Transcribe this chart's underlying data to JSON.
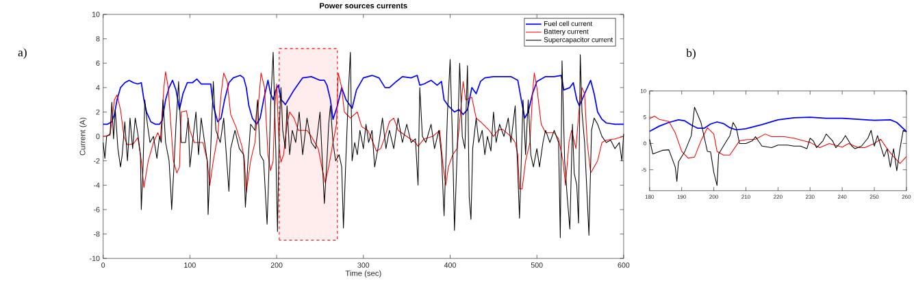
{
  "chart_data": [
    {
      "type": "line",
      "title": "Power sources currents",
      "xlabel": "Time (sec)",
      "ylabel": "Current (A)",
      "xlim": [
        0,
        600
      ],
      "ylim": [
        -10,
        10
      ],
      "xticks": [
        0,
        100,
        200,
        300,
        400,
        500,
        600
      ],
      "yticks": [
        -10,
        -8,
        -6,
        -4,
        -2,
        0,
        2,
        4,
        6,
        8,
        10
      ],
      "legend": "top right",
      "bands": [
        {
          "axis": "x",
          "from": 203,
          "to": 270,
          "color": "#ff0000"
        }
      ],
      "annotations": [
        "a)"
      ],
      "series": [
        {
          "name": "Fuel cell current",
          "color": "#0000ff",
          "x": [
            0,
            5,
            10,
            13,
            16,
            20,
            25,
            30,
            35,
            40,
            44,
            47,
            50,
            55,
            60,
            65,
            68,
            72,
            76,
            80,
            84,
            88,
            92,
            97,
            103,
            108,
            113,
            120,
            124,
            127,
            132,
            136,
            140,
            145,
            150,
            158,
            162,
            165,
            168,
            172,
            177,
            181,
            185,
            190,
            193,
            196,
            199,
            202,
            205,
            208,
            210,
            220,
            230,
            240,
            250,
            255,
            258,
            262,
            265,
            270,
            275,
            280,
            287,
            292,
            300,
            310,
            318,
            325,
            330,
            338,
            345,
            355,
            362,
            365,
            370,
            378,
            385,
            390,
            393,
            398,
            405,
            410,
            415,
            420,
            425,
            430,
            435,
            440,
            450,
            460,
            470,
            478,
            482,
            486,
            490,
            495,
            500,
            510,
            520,
            528,
            531,
            538,
            542,
            546,
            549,
            555,
            562,
            566,
            570,
            575,
            580,
            590,
            600
          ],
          "values": [
            1.0,
            1.0,
            1.2,
            1.8,
            3,
            4,
            4.4,
            4.6,
            4.4,
            4.3,
            4.4,
            3,
            2,
            1.2,
            1.0,
            1.0,
            1.3,
            3,
            4,
            4.6,
            3.8,
            2.2,
            3.5,
            4.4,
            4.4,
            4.7,
            4.3,
            4.3,
            4.3,
            2.5,
            1.2,
            1.5,
            3,
            4.4,
            4.8,
            5.0,
            4.8,
            4,
            2.5,
            1.5,
            1.0,
            1.5,
            3,
            4.6,
            3.5,
            3.0,
            3.8,
            4.2,
            3.0,
            2.8,
            2.6,
            3.8,
            4.8,
            4.9,
            4.6,
            4.6,
            4.2,
            3,
            1.4,
            2.5,
            4,
            3.0,
            2.3,
            3.8,
            4.8,
            5.0,
            4.8,
            4.0,
            4.0,
            4.5,
            4.9,
            4.8,
            5.0,
            4.2,
            4.3,
            4.6,
            4.2,
            4.5,
            3.0,
            2.5,
            2.0,
            2.2,
            1.8,
            2.2,
            4.0,
            3.5,
            4.5,
            4.8,
            4.9,
            4.9,
            4.9,
            4.6,
            3.0,
            1.5,
            2.0,
            3.5,
            4.5,
            4.9,
            4.9,
            5.0,
            3.8,
            4.0,
            4.4,
            3.0,
            2.5,
            3.5,
            4.6,
            3.5,
            2.0,
            1.4,
            1.1,
            1.0,
            1.0
          ]
        },
        {
          "name": "Battery current",
          "color": "#ff0000",
          "x": [
            0,
            8,
            13,
            16,
            20,
            24,
            28,
            35,
            40,
            44,
            47,
            52,
            58,
            63,
            66,
            70,
            72,
            75,
            78,
            81,
            85,
            88,
            90,
            96,
            100,
            105,
            115,
            120,
            123,
            127,
            132,
            136,
            139,
            143,
            147,
            153,
            160,
            163,
            165,
            170,
            175,
            180,
            182,
            186,
            190,
            193,
            196,
            198,
            200,
            203,
            205,
            208,
            212,
            215,
            220,
            225,
            235,
            240,
            248,
            252,
            256,
            260,
            265,
            269,
            271,
            275,
            278,
            285,
            293,
            298,
            305,
            310,
            315,
            320,
            325,
            330,
            335,
            340,
            350,
            360,
            363,
            370,
            380,
            388,
            392,
            395,
            398,
            403,
            408,
            412,
            415,
            418,
            425,
            430,
            435,
            445,
            450,
            455,
            460,
            470,
            475,
            478,
            480,
            483,
            487,
            492,
            495,
            497,
            500,
            505,
            510,
            520,
            525,
            530,
            533,
            537,
            540,
            545,
            549,
            552,
            555,
            558,
            562,
            570,
            575,
            580,
            590,
            600
          ],
          "values": [
            0,
            0.1,
            3.0,
            3.4,
            2.2,
            0.0,
            -0.7,
            -0.6,
            -0.1,
            -2.0,
            -4.2,
            -2,
            -0.5,
            0.3,
            -0.2,
            4,
            5.3,
            4.0,
            1.0,
            -2,
            -3.0,
            -2.5,
            2.0,
            2.1,
            0.5,
            -0.5,
            -0.5,
            -2,
            -4.0,
            -2.0,
            0.0,
            3.5,
            5.2,
            4.5,
            1.8,
            0.8,
            -0.8,
            -2.0,
            -4.6,
            -2.0,
            -0.5,
            3.5,
            5.2,
            4.0,
            -1.5,
            -2.8,
            -2.0,
            2.5,
            4.3,
            -1.0,
            -2.1,
            -1.5,
            1.0,
            2.0,
            1.5,
            0.5,
            0.5,
            0.0,
            -1.0,
            -2.5,
            -3.8,
            -2.5,
            -0.5,
            1.0,
            5.2,
            4.0,
            2.0,
            1.5,
            2.0,
            0.8,
            0.5,
            -0.3,
            -1.2,
            -1.0,
            0.0,
            1.2,
            1.5,
            0.5,
            0.0,
            -0.5,
            -0.8,
            -0.2,
            0.0,
            0.5,
            -2.5,
            -4.0,
            -2.5,
            -1.5,
            -1.0,
            2.0,
            4.5,
            3.0,
            3.2,
            1.5,
            1.2,
            0.5,
            0.0,
            0.5,
            0.6,
            0.0,
            -0.5,
            -1.5,
            -4.3,
            -4.3,
            -2.0,
            -0.5,
            3.5,
            5.2,
            4.0,
            1.0,
            0.3,
            0.3,
            -0.2,
            -2,
            -4,
            -0.5,
            0.5,
            -1.0,
            2.5,
            4.0,
            3.5,
            -0.5,
            -3.0,
            -2,
            -0.5,
            -0.3,
            -0.2,
            0.0
          ]
        },
        {
          "name": "Supercapacitor current",
          "color": "#000000",
          "x": [
            0,
            2,
            4,
            8,
            10,
            12,
            14,
            17,
            20,
            22,
            25,
            28,
            31,
            34,
            37,
            40,
            43,
            44,
            46,
            48,
            51,
            54,
            58,
            62,
            65,
            67,
            69,
            72,
            76,
            78,
            79,
            82,
            84,
            87,
            90,
            95,
            98,
            100,
            103,
            107,
            110,
            113,
            117,
            120,
            121,
            124,
            127,
            130,
            135,
            139,
            142,
            145,
            147,
            152,
            157,
            162,
            164,
            167,
            170,
            175,
            178,
            181,
            185,
            189,
            191,
            193,
            196,
            199,
            201,
            203,
            205,
            207,
            210,
            212,
            215,
            218,
            222,
            226,
            230,
            235,
            240,
            245,
            250,
            253,
            255,
            258,
            260,
            262,
            265,
            268,
            272,
            275,
            277,
            280,
            283,
            285,
            287,
            290,
            293,
            296,
            300,
            303,
            306,
            310,
            313,
            318,
            322,
            326,
            330,
            335,
            340,
            345,
            350,
            355,
            360,
            363,
            365,
            368,
            372,
            378,
            382,
            387,
            390,
            393,
            397,
            400,
            403,
            405,
            408,
            411,
            414,
            417,
            420,
            422,
            424,
            426,
            430,
            433,
            437,
            440,
            443,
            447,
            450,
            453,
            457,
            462,
            467,
            470,
            475,
            478,
            480,
            482,
            484,
            487,
            490,
            493,
            496,
            500,
            503,
            507,
            510,
            515,
            520,
            525,
            527,
            529,
            532,
            535,
            538,
            541,
            543,
            546,
            548,
            550,
            552,
            555,
            558,
            560,
            563,
            566,
            570,
            575,
            580,
            585,
            590,
            595,
            598,
            600
          ],
          "values": [
            -0.5,
            -1.8,
            0.0,
            0.2,
            2.8,
            -0.2,
            2.2,
            -1.0,
            -2.5,
            -1.5,
            1.2,
            -2.0,
            1.5,
            -1.0,
            1.5,
            0.2,
            -1.5,
            -6.0,
            -2.5,
            3.0,
            1.0,
            -0.5,
            0.0,
            -1.8,
            0.0,
            -0.5,
            3.0,
            -0.5,
            -2.0,
            -4.5,
            -6.0,
            -2.0,
            1.0,
            4.5,
            -0.5,
            -0.5,
            1.5,
            -2.5,
            -0.5,
            2.0,
            -1.5,
            1.5,
            -0.5,
            -2.0,
            -6.4,
            -1.0,
            4.5,
            0.5,
            -0.5,
            1.5,
            -1.5,
            -4.5,
            -1.0,
            0.5,
            -1.0,
            -1.5,
            -5.8,
            -2.0,
            1.0,
            0.5,
            3.0,
            -1.5,
            -2.0,
            -7.2,
            -3.0,
            2.5,
            6.9,
            -1.0,
            -7.8,
            0.5,
            4.0,
            0.5,
            -1.0,
            2.5,
            -1.5,
            0.5,
            -0.5,
            2.0,
            -1.5,
            1.5,
            -0.5,
            -1.0,
            2.0,
            -2.5,
            -5.5,
            -2.0,
            1.0,
            2.5,
            -0.5,
            -2.0,
            -1.5,
            -2.5,
            -7.5,
            -1.5,
            4.0,
            6.9,
            -2.0,
            -0.5,
            -1.5,
            0.5,
            -1.0,
            1.0,
            -0.5,
            0.5,
            -2.5,
            -0.5,
            1.5,
            -1.0,
            0.5,
            -1.0,
            1.5,
            -0.5,
            1.0,
            -0.5,
            -0.2,
            -4.0,
            4.0,
            0.0,
            -0.5,
            1.0,
            -1.0,
            0.5,
            -1.5,
            -6.5,
            2.0,
            6.3,
            -1.0,
            -7.7,
            -1.5,
            6.0,
            0.0,
            -1.0,
            5.8,
            -5.0,
            -6.8,
            -1.0,
            1.5,
            -0.5,
            0.5,
            -1.5,
            0.0,
            -1.2,
            2.0,
            -0.5,
            1.0,
            0.0,
            1.5,
            -0.5,
            2.5,
            -3.0,
            -6.7,
            -2.0,
            3.0,
            -1.5,
            3.0,
            -1.5,
            -2.5,
            -1.0,
            -2.5,
            -0.5,
            0.5,
            -0.5,
            0.5,
            -0.5,
            -8.3,
            6.2,
            -2.0,
            -5.0,
            -7.6,
            1.0,
            -3.0,
            -4.0,
            -7.1,
            6.7,
            2.0,
            -0.5,
            -5.0,
            -8.1,
            0.5,
            1.5,
            1.0,
            0.0,
            -0.5,
            -0.3,
            -1.0,
            -0.5,
            -2.0,
            0.2
          ]
        }
      ]
    },
    {
      "type": "line",
      "xlim": [
        180,
        260
      ],
      "ylim": [
        -9,
        10
      ],
      "xticks": [
        180,
        190,
        200,
        210,
        220,
        230,
        240,
        250,
        260
      ],
      "yticks": [
        -5,
        0,
        5,
        10
      ],
      "annotations": [
        "b)"
      ],
      "series": [
        {
          "color": "#0000ff",
          "x": [
            180,
            183,
            186,
            189,
            191,
            193,
            195,
            197,
            199,
            201,
            203,
            205,
            207,
            210,
            215,
            220,
            225,
            230,
            235,
            240,
            245,
            250,
            255,
            257,
            260
          ],
          "values": [
            2.3,
            3.3,
            4.0,
            4.5,
            4.3,
            3.5,
            2.9,
            2.9,
            3.7,
            4.1,
            3.8,
            3.0,
            2.6,
            2.8,
            3.6,
            4.5,
            4.9,
            5.0,
            4.8,
            4.8,
            4.6,
            4.4,
            4.5,
            4.0,
            2.3
          ]
        },
        {
          "color": "#ff0000",
          "x": [
            180,
            181.5,
            183,
            186,
            188,
            190,
            192,
            194,
            196,
            198,
            200,
            201,
            203,
            205,
            208,
            210,
            213,
            216,
            218,
            222,
            225,
            228,
            230,
            233,
            236,
            240,
            242,
            245,
            247,
            250,
            252,
            254,
            256,
            258,
            260
          ],
          "values": [
            4.7,
            5.2,
            4.6,
            4.2,
            2,
            -1.5,
            -2.8,
            -2.6,
            0.5,
            3.0,
            1.8,
            -1.5,
            -2.2,
            -2.2,
            0.5,
            0.7,
            0.8,
            1.8,
            1.3,
            1.3,
            1.0,
            0.5,
            0.2,
            -0.8,
            0.0,
            -0.7,
            0.0,
            -0.8,
            -0.8,
            0.0,
            0.8,
            -1.0,
            -2.5,
            -3.8,
            -2.5
          ]
        },
        {
          "color": "#000000",
          "x": [
            180,
            181,
            184,
            186,
            188,
            188.5,
            189,
            191,
            193,
            194,
            196,
            198,
            199,
            200,
            201,
            201.5,
            204,
            205,
            206,
            207,
            208,
            210,
            212,
            213,
            215,
            218,
            220,
            223,
            225,
            227,
            229,
            230,
            231,
            232,
            234,
            235,
            237,
            238,
            240,
            241,
            243,
            244,
            246,
            248,
            249,
            250,
            251,
            253,
            254,
            255,
            256,
            257,
            258,
            259,
            260
          ],
          "values": [
            0.8,
            -2,
            -1.3,
            -1.2,
            -4.5,
            -7.2,
            -3.5,
            -1.5,
            1.5,
            6.9,
            4.0,
            -1.5,
            -1.6,
            -5.5,
            -8.0,
            -2.0,
            0.5,
            1.5,
            4.0,
            3.0,
            0.0,
            0.0,
            0.5,
            1.3,
            -0.5,
            -0.8,
            -0.3,
            -0.3,
            -0.5,
            -0.5,
            -1.0,
            1.0,
            0.5,
            -0.8,
            0.5,
            1.8,
            0.5,
            -0.8,
            0.5,
            1.5,
            -0.5,
            -1.0,
            -0.5,
            1.0,
            2.5,
            -0.5,
            1.5,
            -2.5,
            -1.0,
            -4.5,
            -1.0,
            -5.2,
            -1.0,
            2.5,
            2.2
          ]
        }
      ]
    }
  ]
}
